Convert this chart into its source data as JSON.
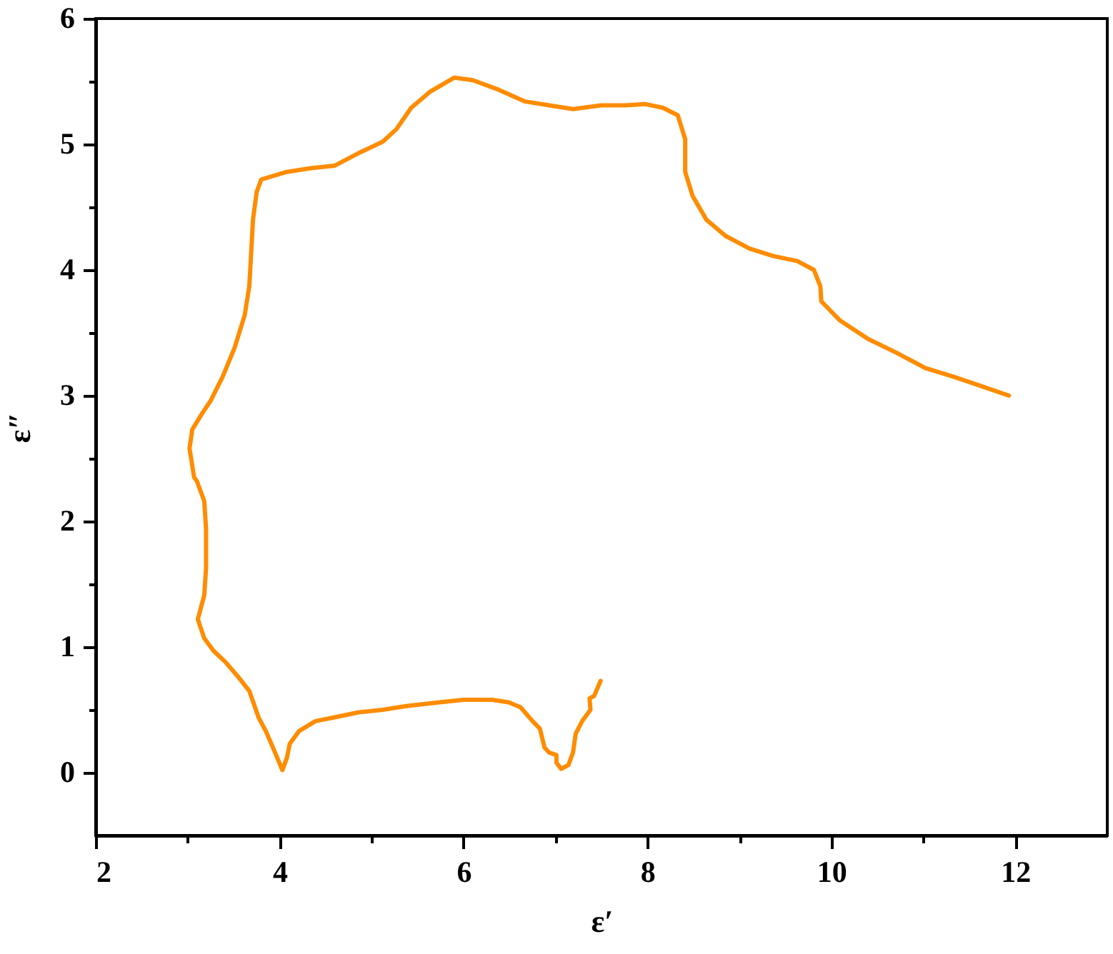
{
  "chart_data": {
    "type": "line",
    "xlabel": "ε′",
    "ylabel": "ε″",
    "xlim": [
      2,
      13
    ],
    "ylim": [
      -0.5,
      6
    ],
    "xticks": [
      2,
      {
        "value": 3,
        "label": null
      },
      4,
      {
        "value": 5,
        "label": null
      },
      6,
      {
        "value": 7,
        "label": null
      },
      8,
      {
        "value": 9,
        "label": null
      },
      10,
      {
        "value": 11,
        "label": null
      },
      12
    ],
    "yticks": [
      0,
      {
        "value": 0.5,
        "label": null
      },
      1,
      {
        "value": 1.5,
        "label": null
      },
      2,
      {
        "value": 2.5,
        "label": null
      },
      3,
      {
        "value": 3.5,
        "label": null
      },
      4,
      {
        "value": 4.5,
        "label": null
      },
      5,
      {
        "value": 5.5,
        "label": null
      },
      6
    ],
    "grid": false,
    "series": [
      {
        "color": "#ff8c00",
        "x": [
          7.49,
          7.42,
          7.37,
          7.38,
          7.29,
          7.22,
          7.19,
          7.14,
          7.06,
          7.01,
          7.01,
          6.93,
          6.88,
          6.83,
          6.75,
          6.62,
          6.49,
          6.31,
          6.0,
          5.74,
          5.38,
          5.12,
          4.86,
          4.6,
          4.39,
          4.21,
          4.11,
          4.08,
          4.03,
          3.95,
          3.85,
          3.77,
          3.67,
          3.54,
          3.41,
          3.28,
          3.18,
          3.11,
          3.18,
          3.2,
          3.2,
          3.18,
          3.1,
          3.07,
          3.02,
          3.05,
          3.15,
          3.25,
          3.38,
          3.51,
          3.62,
          3.67,
          3.69,
          3.71,
          3.75,
          3.8,
          4.08,
          4.34,
          4.6,
          4.86,
          5.12,
          5.27,
          5.43,
          5.64,
          5.9,
          6.1,
          6.36,
          6.67,
          6.93,
          7.19,
          7.5,
          7.76,
          7.97,
          8.17,
          8.33,
          8.41,
          8.41,
          8.49,
          8.64,
          8.85,
          9.11,
          9.37,
          9.63,
          9.81,
          9.88,
          9.89,
          10.09,
          10.4,
          10.71,
          11.02,
          11.33,
          11.65,
          11.93
        ],
        "values": [
          0.73,
          0.61,
          0.59,
          0.5,
          0.41,
          0.31,
          0.16,
          0.06,
          0.03,
          0.08,
          0.14,
          0.16,
          0.2,
          0.35,
          0.41,
          0.52,
          0.56,
          0.58,
          0.58,
          0.56,
          0.53,
          0.5,
          0.48,
          0.44,
          0.41,
          0.33,
          0.23,
          0.12,
          0.02,
          0.16,
          0.33,
          0.44,
          0.65,
          0.77,
          0.88,
          0.97,
          1.07,
          1.22,
          1.41,
          1.63,
          1.94,
          2.16,
          2.32,
          2.35,
          2.58,
          2.73,
          2.85,
          2.96,
          3.15,
          3.38,
          3.64,
          3.87,
          4.13,
          4.4,
          4.62,
          4.72,
          4.78,
          4.81,
          4.83,
          4.93,
          5.02,
          5.12,
          5.29,
          5.42,
          5.53,
          5.51,
          5.44,
          5.34,
          5.31,
          5.28,
          5.31,
          5.31,
          5.32,
          5.29,
          5.23,
          5.04,
          4.78,
          4.59,
          4.4,
          4.27,
          4.17,
          4.11,
          4.07,
          4.0,
          3.87,
          3.75,
          3.6,
          3.45,
          3.34,
          3.22,
          3.15,
          3.07,
          3.0
        ]
      }
    ]
  }
}
